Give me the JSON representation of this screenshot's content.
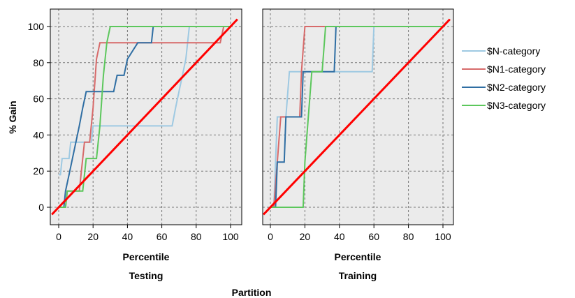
{
  "chart_data": {
    "type": "line",
    "ylabel": "% Gain",
    "xlabel": "Percentile",
    "group_label": "Partition",
    "xlim": [
      0,
      100
    ],
    "ylim": [
      0,
      100
    ],
    "x_ticks": [
      0,
      20,
      40,
      60,
      80,
      100
    ],
    "y_ticks": [
      0,
      20,
      40,
      60,
      80,
      100
    ],
    "grid": true,
    "legend_position": "right",
    "colors": {
      "$N-category": "#9ec9e2",
      "$N1-category": "#d76a6a",
      "$N2-category": "#2f6ea3",
      "$N3-category": "#5cc75c",
      "baseline": "#ff0000"
    },
    "legend": [
      "$N-category",
      "$N1-category",
      "$N2-category",
      "$N3-category"
    ],
    "panels": [
      {
        "label": "Testing",
        "series": [
          {
            "name": "$N-category",
            "points": [
              [
                0,
                18
              ],
              [
                1,
                18
              ],
              [
                2,
                27
              ],
              [
                6,
                27
              ],
              [
                7,
                36
              ],
              [
                19,
                36
              ],
              [
                20,
                45
              ],
              [
                66,
                45
              ],
              [
                68,
                55
              ],
              [
                70,
                64
              ],
              [
                72,
                73
              ],
              [
                74,
                82
              ],
              [
                76,
                100
              ],
              [
                100,
                100
              ]
            ]
          },
          {
            "name": "$N1-category",
            "points": [
              [
                0,
                0
              ],
              [
                4,
                0
              ],
              [
                5,
                9
              ],
              [
                12,
                9
              ],
              [
                14,
                27
              ],
              [
                15,
                36
              ],
              [
                18,
                36
              ],
              [
                20,
                55
              ],
              [
                22,
                82
              ],
              [
                24,
                91
              ],
              [
                94,
                91
              ],
              [
                96,
                100
              ],
              [
                100,
                100
              ]
            ]
          },
          {
            "name": "$N2-category",
            "points": [
              [
                0,
                0
              ],
              [
                3,
                0
              ],
              [
                4,
                9
              ],
              [
                6,
                18
              ],
              [
                8,
                27
              ],
              [
                10,
                36
              ],
              [
                12,
                45
              ],
              [
                14,
                55
              ],
              [
                16,
                64
              ],
              [
                32,
                64
              ],
              [
                34,
                73
              ],
              [
                38,
                73
              ],
              [
                40,
                82
              ],
              [
                46,
                91
              ],
              [
                54,
                91
              ],
              [
                55,
                100
              ],
              [
                100,
                100
              ]
            ]
          },
          {
            "name": "$N3-category",
            "points": [
              [
                0,
                0
              ],
              [
                4,
                0
              ],
              [
                5,
                9
              ],
              [
                14,
                9
              ],
              [
                16,
                27
              ],
              [
                22,
                27
              ],
              [
                24,
                45
              ],
              [
                26,
                73
              ],
              [
                28,
                91
              ],
              [
                30,
                100
              ],
              [
                100,
                100
              ]
            ]
          },
          {
            "name": "baseline",
            "points": [
              [
                -4,
                -4
              ],
              [
                104,
                104
              ]
            ]
          }
        ]
      },
      {
        "label": "Training",
        "series": [
          {
            "name": "$N-category",
            "points": [
              [
                0,
                0
              ],
              [
                2,
                0
              ],
              [
                3,
                25
              ],
              [
                4,
                50
              ],
              [
                9,
                50
              ],
              [
                11,
                75
              ],
              [
                59,
                75
              ],
              [
                60,
                100
              ],
              [
                100,
                100
              ]
            ]
          },
          {
            "name": "$N1-category",
            "points": [
              [
                0,
                0
              ],
              [
                2,
                0
              ],
              [
                4,
                25
              ],
              [
                6,
                50
              ],
              [
                17,
                50
              ],
              [
                18,
                75
              ],
              [
                20,
                100
              ],
              [
                100,
                100
              ]
            ]
          },
          {
            "name": "$N2-category",
            "points": [
              [
                0,
                0
              ],
              [
                3,
                0
              ],
              [
                4,
                25
              ],
              [
                8,
                25
              ],
              [
                9,
                50
              ],
              [
                18,
                50
              ],
              [
                19,
                75
              ],
              [
                37,
                75
              ],
              [
                38,
                100
              ],
              [
                100,
                100
              ]
            ]
          },
          {
            "name": "$N3-category",
            "points": [
              [
                0,
                0
              ],
              [
                19,
                0
              ],
              [
                20,
                25
              ],
              [
                22,
                50
              ],
              [
                24,
                75
              ],
              [
                30,
                75
              ],
              [
                32,
                100
              ],
              [
                100,
                100
              ]
            ]
          },
          {
            "name": "baseline",
            "points": [
              [
                -4,
                -4
              ],
              [
                104,
                104
              ]
            ]
          }
        ]
      }
    ]
  }
}
